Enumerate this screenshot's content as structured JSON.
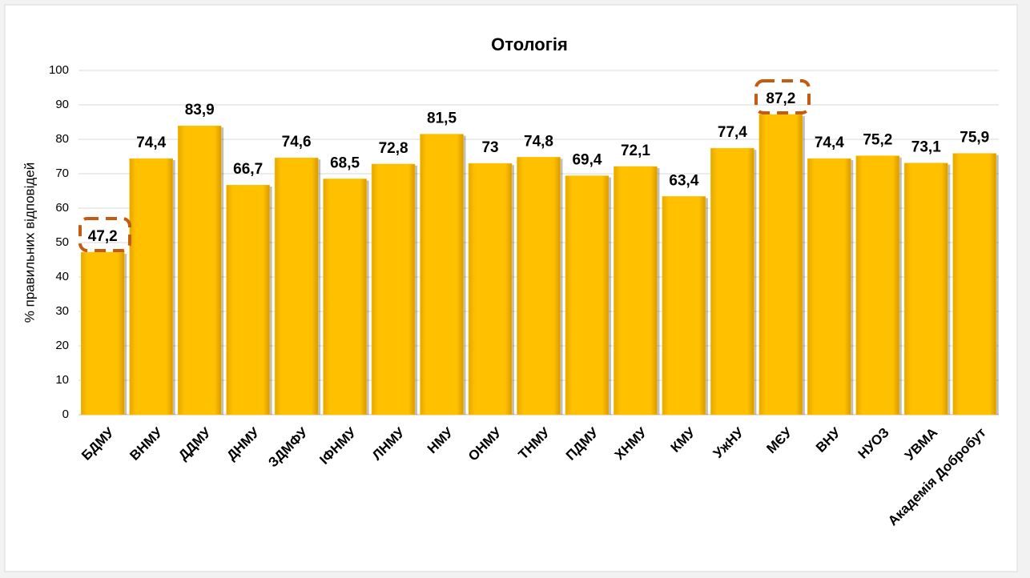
{
  "chart_data": {
    "type": "bar",
    "title": "Отологія",
    "y_label": "% правильних відповідей",
    "categories": [
      "БДМУ",
      "ВНМУ",
      "ДДМУ",
      "ДНМУ",
      "ЗДМФУ",
      "ІФНМУ",
      "ЛНМУ",
      "НМУ",
      "ОНМУ",
      "ТНМУ",
      "ПДМУ",
      "ХНМУ",
      "КМУ",
      "УжНУ",
      "МЄУ",
      "ВНУ",
      "НУОЗ",
      "УВМА",
      "Академія Добробут"
    ],
    "values": [
      47.2,
      74.4,
      83.9,
      66.7,
      74.6,
      68.5,
      72.8,
      81.5,
      73,
      74.8,
      69.4,
      72.1,
      63.4,
      77.4,
      87.2,
      74.4,
      75.2,
      73.1,
      75.9
    ],
    "value_labels": [
      "47,2",
      "74,4",
      "83,9",
      "66,7",
      "74,6",
      "68,5",
      "72,8",
      "81,5",
      "73",
      "74,8",
      "69,4",
      "72,1",
      "63,4",
      "77,4",
      "87,2",
      "74,4",
      "75,2",
      "73,1",
      "75,9"
    ],
    "color": "#ffc000",
    "ylim": [
      0,
      100
    ],
    "yticks": [
      0,
      10,
      20,
      30,
      40,
      50,
      60,
      70,
      80,
      90,
      100
    ],
    "grid": true
  }
}
